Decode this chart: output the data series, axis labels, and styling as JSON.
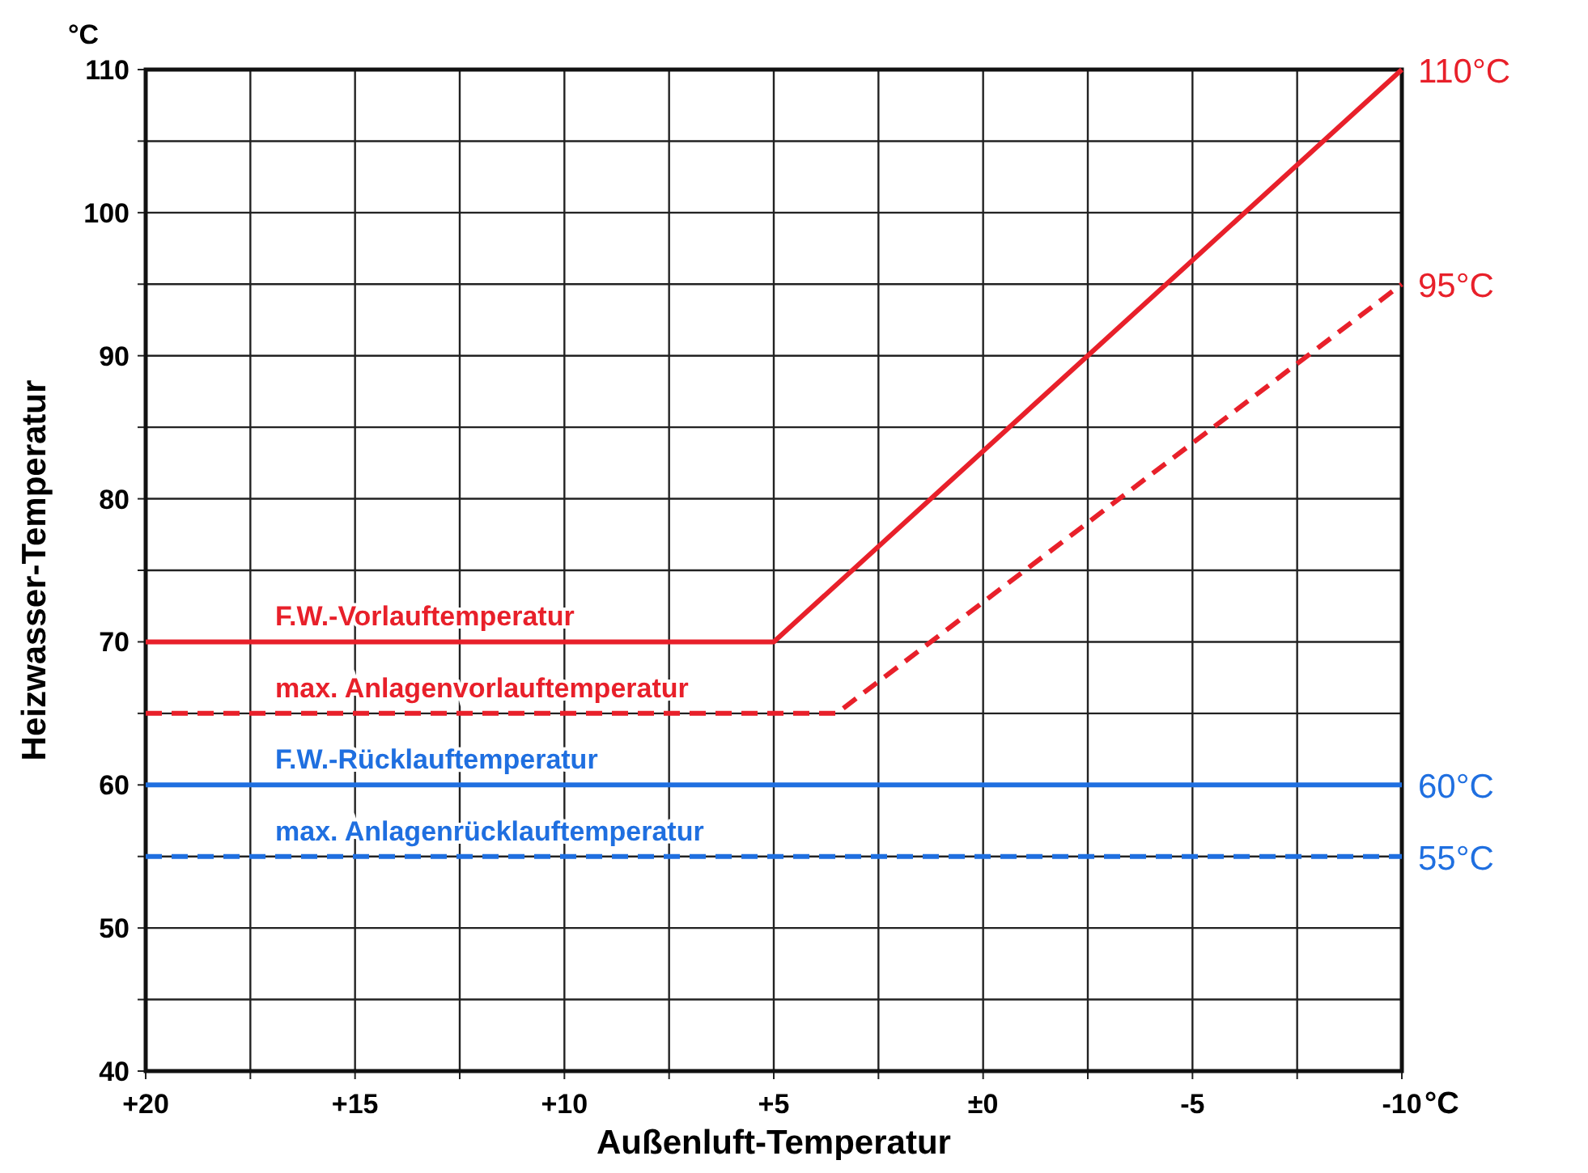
{
  "chart_data": {
    "type": "line",
    "xlabel": "Außenluft-Temperatur",
    "ylabel": "Heizwasser-Temperatur",
    "xlim": [
      20,
      -10
    ],
    "xticks": [
      {
        "value": 20,
        "label": "+20"
      },
      {
        "value": 17.5,
        "label": null
      },
      {
        "value": 15,
        "label": "+15"
      },
      {
        "value": 12.5,
        "label": null
      },
      {
        "value": 10,
        "label": "+10"
      },
      {
        "value": 7.5,
        "label": null
      },
      {
        "value": 5,
        "label": "+5"
      },
      {
        "value": 2.5,
        "label": null
      },
      {
        "value": 0,
        "label": "±0"
      },
      {
        "value": -2.5,
        "label": null
      },
      {
        "value": -5,
        "label": "-5"
      },
      {
        "value": -7.5,
        "label": null
      },
      {
        "value": -10,
        "label": "-10"
      }
    ],
    "ylim": [
      40,
      110
    ],
    "yticks": [
      40,
      {
        "value": 45,
        "label": null
      },
      50,
      {
        "value": 55,
        "label": null
      },
      60,
      {
        "value": 65,
        "label": null
      },
      70,
      {
        "value": 75,
        "label": null
      },
      80,
      {
        "value": 85,
        "label": null
      },
      90,
      {
        "value": 95,
        "label": null
      },
      100,
      {
        "value": 105,
        "label": null
      },
      110
    ],
    "grid": true,
    "marker": "none",
    "series": [
      {
        "name": "F.W.-Vorlauftemperatur",
        "color": "#e8202a",
        "line_style": "solid",
        "x": [
          20,
          5,
          -10
        ],
        "values": [
          70,
          70,
          110
        ]
      },
      {
        "name": "max. Anlagenvorlauftemperatur",
        "color": "#e8202a",
        "line_style": "dashed",
        "x": [
          20,
          3.5,
          -10
        ],
        "values": [
          65,
          65,
          95
        ]
      },
      {
        "name": "F.W.-Rücklauftemperatur",
        "color": "#1f6fe0",
        "line_style": "solid",
        "x": [
          20,
          -10
        ],
        "values": [
          60,
          60
        ]
      },
      {
        "name": "max. Anlagenrücklauftemperatur",
        "color": "#1f6fe0",
        "line_style": "dashed",
        "x": [
          20,
          -10
        ],
        "values": [
          55,
          55
        ]
      }
    ],
    "annotations": [
      "°C",
      "°C",
      "110°C",
      "95°C",
      "60°C",
      "55°C"
    ]
  }
}
